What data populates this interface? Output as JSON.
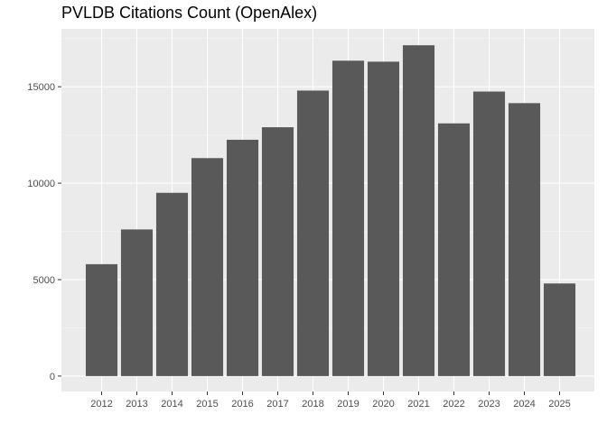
{
  "chart_data": {
    "type": "bar",
    "title": "PVLDB Citations Count (OpenAlex)",
    "xlabel": "",
    "ylabel": "",
    "categories": [
      "2012",
      "2013",
      "2014",
      "2015",
      "2016",
      "2017",
      "2018",
      "2019",
      "2020",
      "2021",
      "2022",
      "2023",
      "2024",
      "2025"
    ],
    "values": [
      5800,
      7600,
      9500,
      11300,
      12250,
      12900,
      14800,
      16350,
      16300,
      17150,
      13100,
      14750,
      14150,
      4800
    ],
    "ylim": [
      -800,
      18000
    ],
    "yticks": [
      0,
      5000,
      10000,
      15000
    ],
    "ytick_labels": [
      "0",
      "5000",
      "10000",
      "15000"
    ],
    "grid": true,
    "colors": {
      "bar": "#595959",
      "panel": "#ebebeb",
      "grid_major": "#ffffff",
      "grid_minor": "#f5f5f5"
    }
  }
}
